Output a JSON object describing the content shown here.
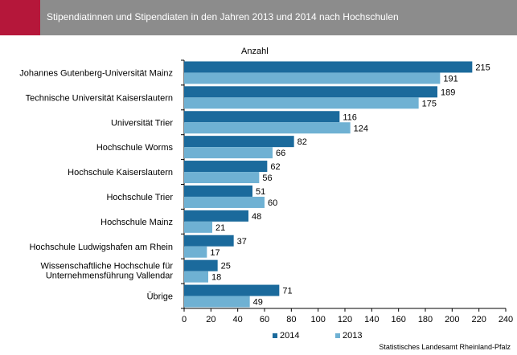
{
  "header": {
    "title": "Stipendiatinnen und Stipendiaten in den Jahren 2013 und 2014 nach Hochschulen"
  },
  "source": "Statistisches Landesamt Rheinland-Pfalz",
  "colors": {
    "series_2014": "#1b6a9c",
    "series_2013": "#6fb1d3",
    "header_bg": "#8c8c8c",
    "accent": "#b5173a"
  },
  "chart_data": {
    "type": "bar",
    "orientation": "horizontal",
    "unit_label": "Anzahl",
    "categories": [
      [
        "Johannes Gutenberg-Universität Mainz"
      ],
      [
        "Technische Universität Kaiserslautern"
      ],
      [
        "Universität Trier"
      ],
      [
        "Hochschule Worms"
      ],
      [
        "Hochschule Kaiserslautern"
      ],
      [
        "Hochschule Trier"
      ],
      [
        "Hochschule Mainz"
      ],
      [
        "Hochschule Ludwigshafen am Rhein"
      ],
      [
        "Wissenschaftliche Hochschule für",
        "Unternehmensführung Vallendar"
      ],
      [
        "Übrige"
      ]
    ],
    "series": [
      {
        "name": "2014",
        "values": [
          215,
          189,
          116,
          82,
          62,
          51,
          48,
          37,
          25,
          71
        ]
      },
      {
        "name": "2013",
        "values": [
          191,
          175,
          124,
          66,
          56,
          60,
          21,
          17,
          18,
          49
        ]
      }
    ],
    "xlim": [
      0,
      240
    ],
    "xticks": [
      0,
      20,
      40,
      60,
      80,
      100,
      120,
      140,
      160,
      180,
      200,
      220,
      240
    ],
    "grid": false,
    "legend_position": "bottom"
  }
}
